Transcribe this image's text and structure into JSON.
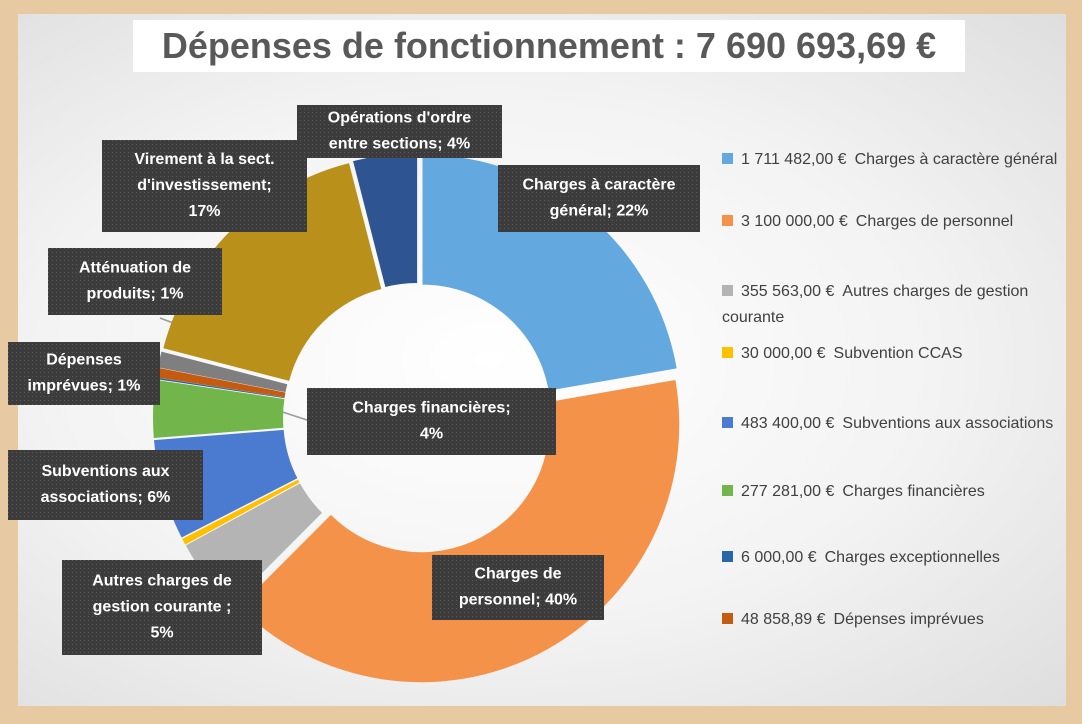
{
  "chart_data": {
    "type": "donut",
    "title": "Dépenses de fonctionnement : 7 690 693,69 €",
    "categories": [
      "Charges à caractère général",
      "Charges de personnel",
      "Autres charges de gestion courante",
      "Subvention CCAS",
      "Subventions aux associations",
      "Charges financières",
      "Charges exceptionnelles",
      "Dépenses imprévues",
      null,
      null,
      null
    ],
    "values": [
      22.3,
      40.3,
      4.6,
      0.4,
      6.3,
      3.6,
      0.1,
      0.6,
      1,
      17,
      4
    ],
    "colors": [
      "#64a8e0",
      "#f4924a",
      "#b4b4b4",
      "#ffc000",
      "#4a7bd0",
      "#72b54a",
      "#2a66a6",
      "#c55a11",
      "#7f7f7f",
      "#b8901a",
      "#2e5591"
    ],
    "amounts": [
      1711482.0,
      3100000.0,
      355563.0,
      30000.0,
      483400.0,
      277281.0,
      6000.0,
      48858.89,
      null,
      null,
      null
    ],
    "amount_labels": [
      "1 711 482,00 €",
      "3 100 000,00 €",
      "355 563,00 €",
      "30 000,00 €",
      "483 400,00 €",
      "277 281,00 €",
      "6 000,00 €",
      "48 858,89 €",
      null,
      null,
      null
    ],
    "data_labels": [
      [
        "Charges à caractère",
        "général; 22%"
      ],
      [
        "Charges de",
        "personnel; 40%"
      ],
      [
        "Autres charges de",
        "gestion courante ;",
        "5%"
      ],
      null,
      [
        "Subventions aux",
        "associations; 6%"
      ],
      [
        "Charges financières;",
        "4%"
      ],
      null,
      [
        "Dépenses",
        "imprévues; 1%"
      ],
      [
        "Atténuation de",
        "produits; 1%"
      ],
      [
        "Virement à la sect.",
        "d'investissement;",
        "17%"
      ],
      [
        "Opérations d'ordre",
        "entre sections; 4%"
      ]
    ],
    "legend": true
  }
}
